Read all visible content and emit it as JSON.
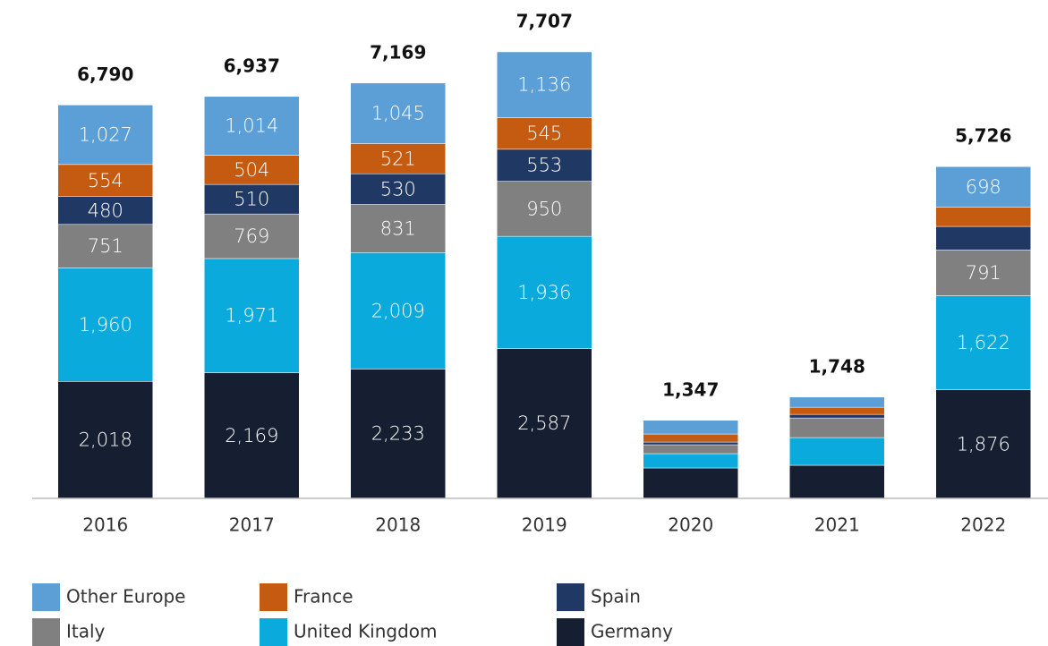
{
  "chart_data": {
    "type": "stacked_bar",
    "categories": [
      "2016",
      "2017",
      "2018",
      "2019",
      "2020",
      "2021",
      "2022"
    ],
    "series": [
      {
        "name": "Other Europe",
        "color": "#5b9fd6",
        "values": [
          1027,
          1014,
          1045,
          1136,
          236,
          175,
          698
        ],
        "value_labels": [
          "1,027",
          "1,014",
          "1,045",
          "1,136",
          null,
          null,
          "698"
        ]
      },
      {
        "name": "France",
        "color": "#c55a11",
        "values": [
          554,
          504,
          521,
          545,
          139,
          123,
          334
        ],
        "value_labels": [
          "554",
          "504",
          "521",
          "545",
          null,
          null,
          null
        ]
      },
      {
        "name": "Spain",
        "color": "#203864",
        "values": [
          480,
          510,
          530,
          553,
          46,
          62,
          405
        ],
        "value_labels": [
          "480",
          "510",
          "530",
          "553",
          null,
          null,
          null
        ]
      },
      {
        "name": "Italy",
        "color": "#808080",
        "values": [
          751,
          769,
          831,
          950,
          154,
          339,
          791
        ],
        "value_labels": [
          "751",
          "769",
          "831",
          "950",
          null,
          null,
          "791"
        ]
      },
      {
        "name": "United Kingdom",
        "color": "#0aabdc",
        "values": [
          1960,
          1971,
          2009,
          1936,
          247,
          478,
          1622
        ],
        "value_labels": [
          "1,960",
          "1,971",
          "2,009",
          "1,936",
          null,
          null,
          "1,622"
        ]
      },
      {
        "name": "Germany",
        "color": "#161e31",
        "values": [
          2018,
          2169,
          2233,
          2587,
          525,
          571,
          1876
        ],
        "value_labels": [
          "2,018",
          "2,169",
          "2,233",
          "2,587",
          null,
          null,
          "1,876"
        ]
      }
    ],
    "totals": [
      6790,
      6937,
      7169,
      7707,
      1347,
      1748,
      5726
    ],
    "total_labels": [
      "6,790",
      "6,937",
      "7,169",
      "7,707",
      "1,347",
      "1,748",
      "5,726"
    ],
    "ylim": [
      0,
      8000
    ]
  }
}
